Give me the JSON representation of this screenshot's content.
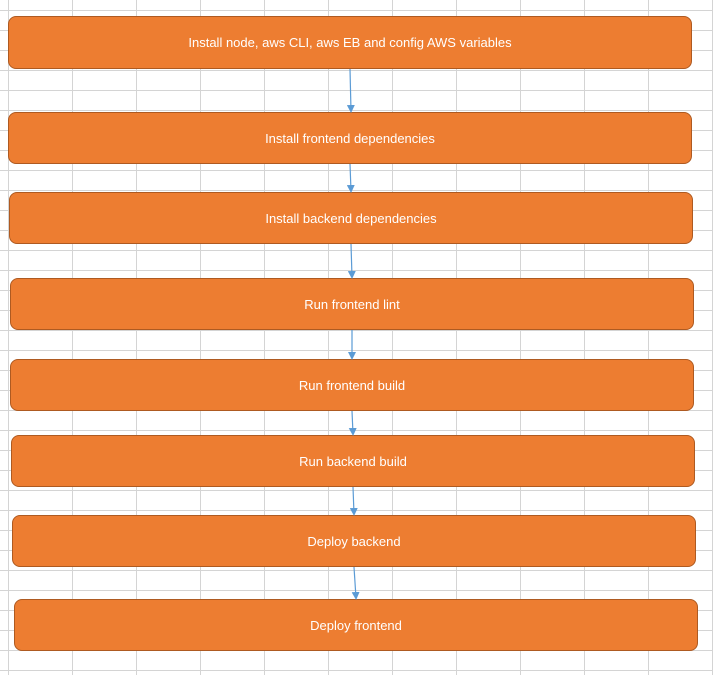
{
  "steps": [
    "Install node, aws CLI, aws EB and config AWS variables",
    "Install frontend dependencies",
    "Install backend dependencies",
    "Run frontend lint",
    "Run frontend build",
    "Run backend build",
    "Deploy backend",
    "Deploy frontend"
  ],
  "colors": {
    "box_fill": "#ed7d31",
    "box_border": "#ae5a21",
    "box_text": "#ffffff",
    "arrow": "#5b9bd5",
    "grid": "#d4d4d4"
  }
}
